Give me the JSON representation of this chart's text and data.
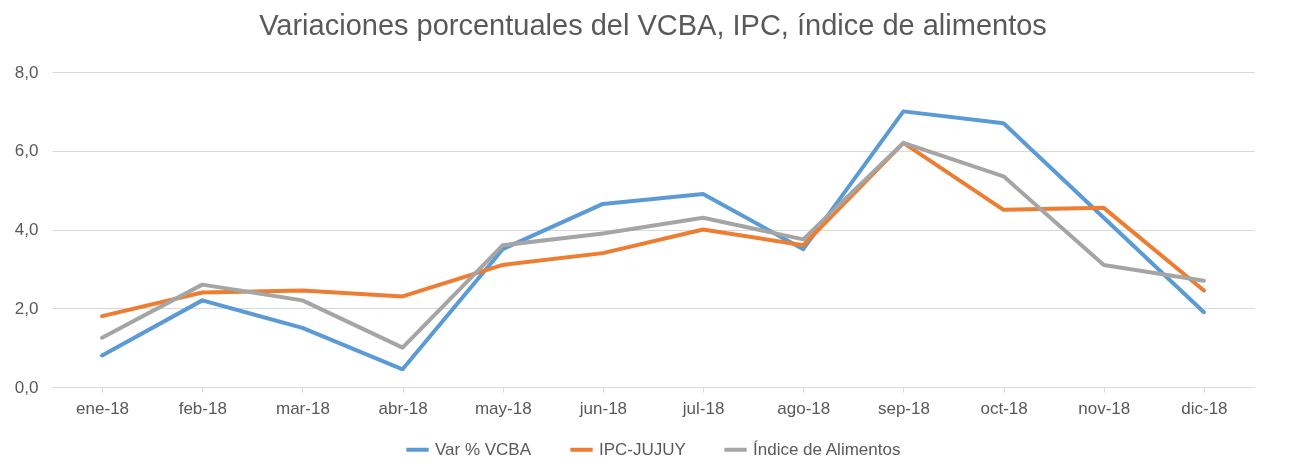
{
  "chart_data": {
    "type": "line",
    "title": "Variaciones porcentuales del VCBA, IPC, índice de alimentos",
    "categories": [
      "ene-18",
      "feb-18",
      "mar-18",
      "abr-18",
      "may-18",
      "jun-18",
      "jul-18",
      "ago-18",
      "sep-18",
      "oct-18",
      "nov-18",
      "dic-18"
    ],
    "series": [
      {
        "name": "Var % VCBA",
        "color": "#5b9bd5",
        "values": [
          0.8,
          2.2,
          1.5,
          0.45,
          3.5,
          4.65,
          4.9,
          3.5,
          7.0,
          6.7,
          4.3,
          1.9
        ]
      },
      {
        "name": "IPC-JUJUY",
        "color": "#ed7d31",
        "values": [
          1.8,
          2.4,
          2.45,
          2.3,
          3.1,
          3.4,
          4.0,
          3.6,
          6.2,
          4.5,
          4.55,
          2.45
        ]
      },
      {
        "name": "Índice de Alimentos",
        "color": "#a5a5a5",
        "values": [
          1.25,
          2.6,
          2.2,
          1.0,
          3.6,
          3.9,
          4.3,
          3.75,
          6.2,
          5.35,
          3.1,
          2.7
        ]
      }
    ],
    "ylim": [
      0,
      8
    ],
    "yticks": [
      {
        "value": 0,
        "label": "0,0"
      },
      {
        "value": 2,
        "label": "2,0"
      },
      {
        "value": 4,
        "label": "4,0"
      },
      {
        "value": 6,
        "label": "6,0"
      },
      {
        "value": 8,
        "label": "8,0"
      }
    ],
    "grid": "y",
    "legend": "bottom",
    "marker": "none",
    "line_style": "solid"
  }
}
